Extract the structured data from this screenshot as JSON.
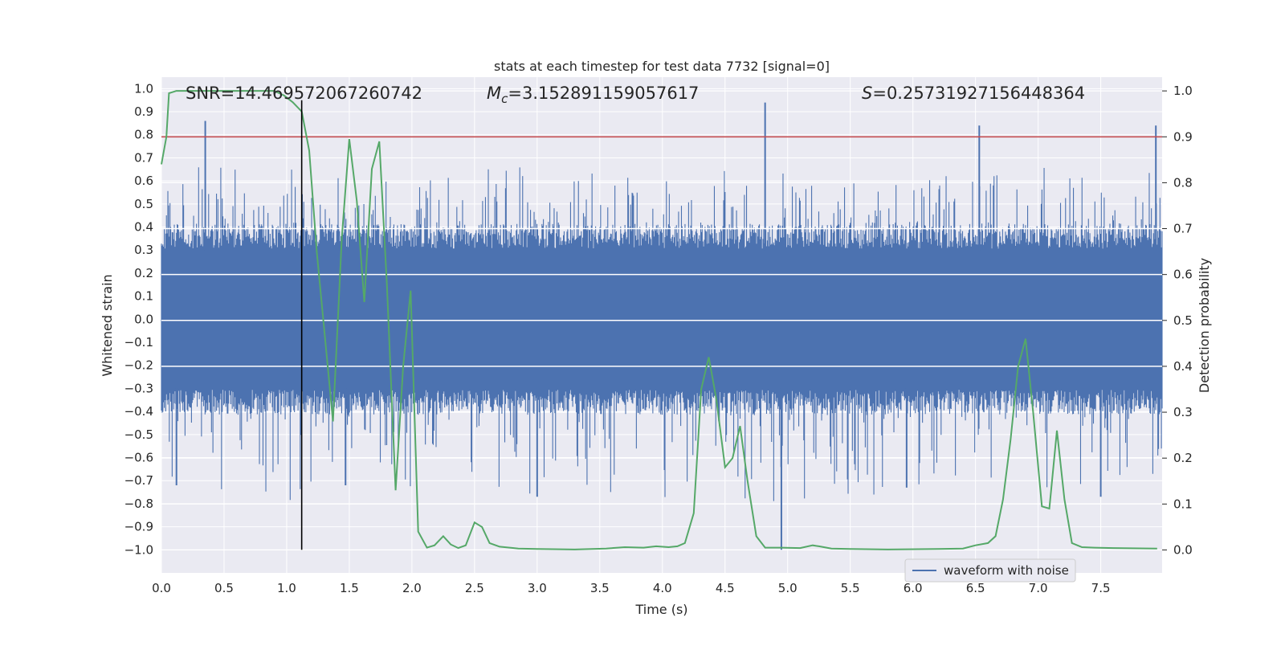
{
  "chart_data": {
    "type": "line",
    "title": "stats at each timestep for test data 7732 [signal=0]",
    "xlabel": "Time (s)",
    "ylabel": "Whitened strain",
    "ylabel_right": "Detection probability",
    "xlim": [
      0.0,
      7.99
    ],
    "ylim": [
      -1.1,
      1.05
    ],
    "ylim_right": [
      -0.05,
      1.03
    ],
    "grid": true,
    "legend": {
      "position": "bottom-right",
      "entries": [
        "waveform with noise"
      ]
    },
    "x_ticks": [
      "0.0",
      "0.5",
      "1.0",
      "1.5",
      "2.0",
      "2.5",
      "3.0",
      "3.5",
      "4.0",
      "4.5",
      "5.0",
      "5.5",
      "6.0",
      "6.5",
      "7.0",
      "7.5"
    ],
    "y_ticks": [
      "1.0",
      "0.9",
      "0.8",
      "0.7",
      "0.6",
      "0.5",
      "0.4",
      "0.3",
      "0.2",
      "0.1",
      "0.0",
      "−0.1",
      "−0.2",
      "−0.3",
      "−0.4",
      "−0.5",
      "−0.6",
      "−0.7",
      "−0.8",
      "−0.9",
      "−1.0"
    ],
    "y_ticks_right": [
      "1.0",
      "0.9",
      "0.8",
      "0.7",
      "0.6",
      "0.5",
      "0.4",
      "0.3",
      "0.2",
      "0.1",
      "0.0"
    ],
    "annotations": {
      "snr": "SNR=14.469572067260742",
      "mc_symbol": "M",
      "mc_subscript": "c",
      "mc_value": "=3.152891159057617",
      "s_symbol": "S",
      "s_value": "=0.25731927156448364"
    },
    "vertical_line_x": 1.12,
    "threshold_probability": 0.9,
    "series": [
      {
        "name": "waveform with noise",
        "axis": "left",
        "color": "#4c72b0",
        "envelope_typical": 0.36,
        "spike_max": 0.94,
        "spike_min": -1.0,
        "notable_spikes": [
          {
            "x": 0.35,
            "y": 0.86
          },
          {
            "x": 4.82,
            "y": 0.94
          },
          {
            "x": 6.53,
            "y": 0.84
          },
          {
            "x": 7.94,
            "y": 0.84
          },
          {
            "x": 4.95,
            "y": -1.0
          },
          {
            "x": 3.0,
            "y": -0.77
          },
          {
            "x": 7.5,
            "y": -0.77
          },
          {
            "x": 1.47,
            "y": -0.72
          },
          {
            "x": 0.12,
            "y": -0.72
          },
          {
            "x": 5.95,
            "y": -0.73
          }
        ]
      },
      {
        "name": "detection probability",
        "axis": "right",
        "color": "#55a868",
        "points": [
          [
            0.0,
            0.84
          ],
          [
            0.04,
            0.9
          ],
          [
            0.06,
            0.995
          ],
          [
            0.12,
            1.0
          ],
          [
            0.25,
            1.0
          ],
          [
            0.5,
            1.0
          ],
          [
            0.75,
            1.0
          ],
          [
            0.9,
            1.0
          ],
          [
            0.98,
            0.99
          ],
          [
            1.05,
            0.975
          ],
          [
            1.12,
            0.955
          ],
          [
            1.18,
            0.87
          ],
          [
            1.24,
            0.65
          ],
          [
            1.3,
            0.48
          ],
          [
            1.37,
            0.28
          ],
          [
            1.44,
            0.68
          ],
          [
            1.5,
            0.895
          ],
          [
            1.56,
            0.76
          ],
          [
            1.62,
            0.54
          ],
          [
            1.68,
            0.83
          ],
          [
            1.74,
            0.89
          ],
          [
            1.8,
            0.58
          ],
          [
            1.87,
            0.13
          ],
          [
            1.93,
            0.4
          ],
          [
            1.99,
            0.565
          ],
          [
            2.05,
            0.04
          ],
          [
            2.12,
            0.005
          ],
          [
            2.18,
            0.01
          ],
          [
            2.25,
            0.03
          ],
          [
            2.31,
            0.012
          ],
          [
            2.37,
            0.004
          ],
          [
            2.43,
            0.01
          ],
          [
            2.5,
            0.06
          ],
          [
            2.56,
            0.05
          ],
          [
            2.62,
            0.015
          ],
          [
            2.7,
            0.007
          ],
          [
            2.85,
            0.003
          ],
          [
            3.0,
            0.002
          ],
          [
            3.3,
            0.001
          ],
          [
            3.55,
            0.003
          ],
          [
            3.7,
            0.006
          ],
          [
            3.85,
            0.005
          ],
          [
            3.95,
            0.008
          ],
          [
            4.05,
            0.006
          ],
          [
            4.12,
            0.008
          ],
          [
            4.18,
            0.015
          ],
          [
            4.25,
            0.08
          ],
          [
            4.31,
            0.35
          ],
          [
            4.37,
            0.42
          ],
          [
            4.43,
            0.33
          ],
          [
            4.5,
            0.18
          ],
          [
            4.56,
            0.2
          ],
          [
            4.62,
            0.27
          ],
          [
            4.68,
            0.15
          ],
          [
            4.75,
            0.03
          ],
          [
            4.82,
            0.005
          ],
          [
            4.95,
            0.005
          ],
          [
            5.1,
            0.004
          ],
          [
            5.2,
            0.01
          ],
          [
            5.25,
            0.008
          ],
          [
            5.35,
            0.003
          ],
          [
            5.5,
            0.002
          ],
          [
            5.8,
            0.001
          ],
          [
            6.2,
            0.002
          ],
          [
            6.4,
            0.003
          ],
          [
            6.5,
            0.01
          ],
          [
            6.6,
            0.015
          ],
          [
            6.66,
            0.03
          ],
          [
            6.72,
            0.11
          ],
          [
            6.78,
            0.24
          ],
          [
            6.84,
            0.4
          ],
          [
            6.9,
            0.46
          ],
          [
            6.96,
            0.3
          ],
          [
            7.03,
            0.095
          ],
          [
            7.09,
            0.09
          ],
          [
            7.15,
            0.26
          ],
          [
            7.21,
            0.11
          ],
          [
            7.27,
            0.015
          ],
          [
            7.35,
            0.006
          ],
          [
            7.45,
            0.005
          ],
          [
            7.6,
            0.004
          ],
          [
            7.95,
            0.003
          ]
        ]
      }
    ]
  }
}
